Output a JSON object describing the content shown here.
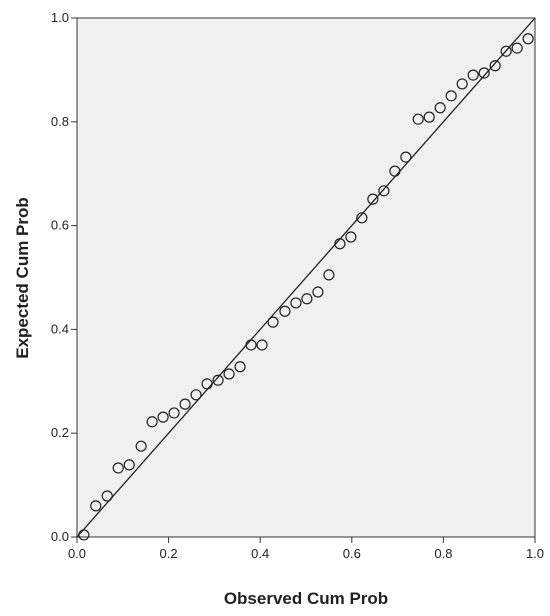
{
  "chart_data": {
    "type": "scatter",
    "x_label": "Observed Cum Prob",
    "y_label": "Expected Cum Prob",
    "xlim": [
      0,
      1
    ],
    "ylim": [
      0,
      1
    ],
    "xticks": [
      {
        "value": 0,
        "label": "0.0"
      },
      0.2,
      0.4,
      0.6,
      0.8,
      {
        "value": 1,
        "label": "1.0"
      }
    ],
    "yticks": [
      {
        "value": 0,
        "label": "0.0"
      },
      0.2,
      0.4,
      0.6,
      0.8,
      {
        "value": 1,
        "label": "1.0"
      }
    ],
    "reference_line": true,
    "color": "#222222",
    "background": "#f0f0f0",
    "x": [
      0.015,
      0.041,
      0.066,
      0.09,
      0.114,
      0.14,
      0.164,
      0.188,
      0.212,
      0.236,
      0.26,
      0.284,
      0.308,
      0.332,
      0.356,
      0.38,
      0.404,
      0.428,
      0.454,
      0.478,
      0.502,
      0.526,
      0.55,
      0.574,
      0.598,
      0.622,
      0.646,
      0.67,
      0.694,
      0.718,
      0.745,
      0.769,
      0.793,
      0.817,
      0.841,
      0.865,
      0.889,
      0.913,
      0.937,
      0.961,
      0.985
    ],
    "y": [
      0.004,
      0.06,
      0.079,
      0.133,
      0.139,
      0.175,
      0.222,
      0.231,
      0.239,
      0.256,
      0.274,
      0.295,
      0.302,
      0.314,
      0.328,
      0.37,
      0.37,
      0.414,
      0.435,
      0.451,
      0.459,
      0.472,
      0.505,
      0.565,
      0.578,
      0.615,
      0.651,
      0.667,
      0.705,
      0.732,
      0.805,
      0.809,
      0.827,
      0.85,
      0.873,
      0.89,
      0.894,
      0.908,
      0.936,
      0.942,
      0.96
    ]
  }
}
